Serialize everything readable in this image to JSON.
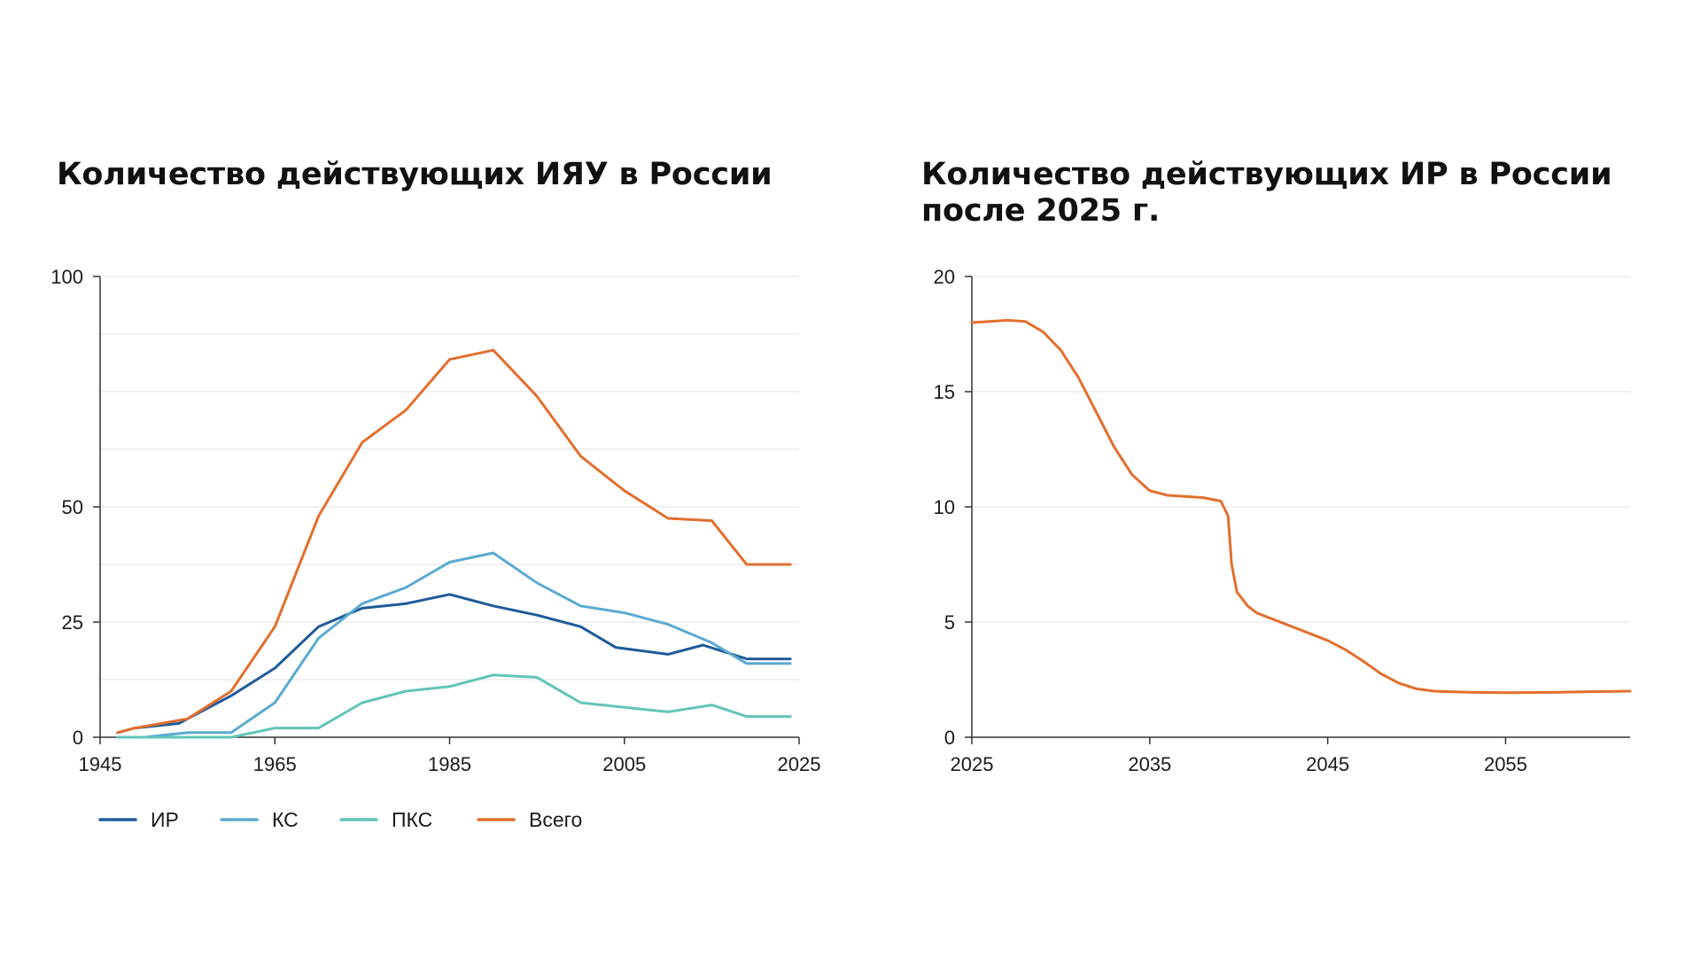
{
  "chart_data": [
    {
      "type": "line",
      "title": "Количество действующих ИЯУ в России",
      "xlabel": "",
      "ylabel": "",
      "xlim": [
        1945,
        2025
      ],
      "ylim": [
        0,
        100
      ],
      "x_ticks": [
        1945,
        1965,
        1985,
        2005,
        2025
      ],
      "y_ticks": [
        0,
        25,
        50,
        100
      ],
      "grid": true,
      "legend": "bottom",
      "series": [
        {
          "name": "ИР",
          "color": "#1f5b99",
          "points": [
            [
              1947,
              1
            ],
            [
              1949,
              2
            ],
            [
              1954,
              3
            ],
            [
              1960,
              9
            ],
            [
              1965,
              15
            ],
            [
              1970,
              24
            ],
            [
              1975,
              28
            ],
            [
              1980,
              29
            ],
            [
              1985,
              31
            ],
            [
              1990,
              28.5
            ],
            [
              1995,
              26.5
            ],
            [
              2000,
              24
            ],
            [
              2004,
              19.5
            ],
            [
              2010,
              18
            ],
            [
              2014,
              20
            ],
            [
              2019,
              17
            ],
            [
              2024,
              17
            ]
          ]
        },
        {
          "name": "КС",
          "color": "#5aaad0",
          "points": [
            [
              1947,
              0
            ],
            [
              1950,
              0
            ],
            [
              1955,
              1
            ],
            [
              1960,
              1
            ],
            [
              1965,
              7.5
            ],
            [
              1970,
              21.5
            ],
            [
              1975,
              29
            ],
            [
              1980,
              32.5
            ],
            [
              1985,
              38
            ],
            [
              1990,
              40
            ],
            [
              1995,
              33.5
            ],
            [
              2000,
              28.5
            ],
            [
              2005,
              27
            ],
            [
              2010,
              24.5
            ],
            [
              2015,
              20.5
            ],
            [
              2019,
              16
            ],
            [
              2024,
              16
            ]
          ]
        },
        {
          "name": "ПКС",
          "color": "#62c4b8",
          "points": [
            [
              1947,
              0
            ],
            [
              1950,
              0
            ],
            [
              1955,
              0
            ],
            [
              1960,
              0
            ],
            [
              1965,
              2
            ],
            [
              1970,
              2
            ],
            [
              1975,
              7.5
            ],
            [
              1980,
              10
            ],
            [
              1985,
              11
            ],
            [
              1990,
              13.5
            ],
            [
              1995,
              13
            ],
            [
              2000,
              7.5
            ],
            [
              2005,
              6.5
            ],
            [
              2010,
              5.5
            ],
            [
              2015,
              7
            ],
            [
              2019,
              4.5
            ],
            [
              2024,
              4.5
            ]
          ]
        },
        {
          "name": "Всего",
          "color": "#e26f2e",
          "points": [
            [
              1947,
              1
            ],
            [
              1949,
              2
            ],
            [
              1955,
              4
            ],
            [
              1960,
              10
            ],
            [
              1965,
              24
            ],
            [
              1970,
              48
            ],
            [
              1975,
              64
            ],
            [
              1980,
              71
            ],
            [
              1985,
              82
            ],
            [
              1990,
              84
            ],
            [
              1995,
              74
            ],
            [
              2000,
              61
            ],
            [
              2005,
              53.5
            ],
            [
              2010,
              47.5
            ],
            [
              2015,
              47
            ],
            [
              2019,
              37.5
            ],
            [
              2024,
              37.5
            ]
          ]
        }
      ]
    },
    {
      "type": "line",
      "title": "Количество действующих ИР в России\nпосле 2025 г.",
      "xlabel": "",
      "ylabel": "",
      "xlim": [
        2025,
        2062
      ],
      "ylim": [
        0,
        20
      ],
      "x_ticks": [
        2025,
        2035,
        2045,
        2055
      ],
      "y_ticks": [
        0,
        5,
        10,
        15,
        20
      ],
      "grid": true,
      "series": [
        {
          "name": "",
          "color": "#e26f2e",
          "points": [
            [
              2025,
              18
            ],
            [
              2026,
              18.05
            ],
            [
              2027,
              18.1
            ],
            [
              2028,
              18.05
            ],
            [
              2029,
              17.6
            ],
            [
              2030,
              16.8
            ],
            [
              2031,
              15.6
            ],
            [
              2032,
              14.1
            ],
            [
              2033,
              12.6
            ],
            [
              2034,
              11.4
            ],
            [
              2035,
              10.7
            ],
            [
              2036,
              10.5
            ],
            [
              2037,
              10.45
            ],
            [
              2038,
              10.4
            ],
            [
              2039,
              10.25
            ],
            [
              2039.4,
              9.6
            ],
            [
              2039.6,
              7.5
            ],
            [
              2039.9,
              6.3
            ],
            [
              2040.5,
              5.7
            ],
            [
              2041,
              5.4
            ],
            [
              2043,
              4.8
            ],
            [
              2045,
              4.2
            ],
            [
              2046,
              3.8
            ],
            [
              2047,
              3.3
            ],
            [
              2048,
              2.75
            ],
            [
              2049,
              2.35
            ],
            [
              2050,
              2.1
            ],
            [
              2051,
              2.0
            ],
            [
              2053,
              1.95
            ],
            [
              2055,
              1.93
            ],
            [
              2058,
              1.95
            ],
            [
              2060,
              1.98
            ],
            [
              2062,
              2.0
            ]
          ]
        }
      ]
    }
  ]
}
